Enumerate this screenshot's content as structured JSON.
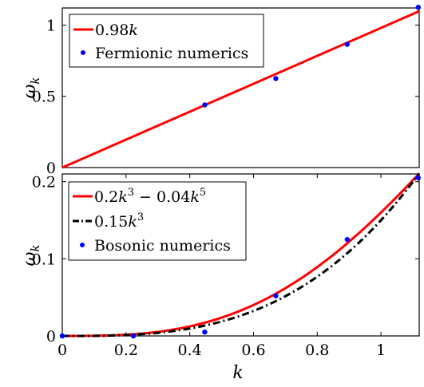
{
  "chart_data": [
    {
      "type": "line",
      "panel": "top",
      "xlabel": "",
      "ylabel": "ω_k",
      "xlim": [
        0,
        1.12
      ],
      "ylim": [
        0,
        1.12
      ],
      "yticks": [
        0,
        0.5,
        1
      ],
      "yticklabels": [
        "0",
        "0.5",
        "1"
      ],
      "legend_placement": "top-left",
      "grid": false,
      "series": [
        {
          "name": "0.98k",
          "kind": "line",
          "color": "#ff0000",
          "x": [
            0,
            1.12
          ],
          "y": [
            0,
            1.0976
          ]
        },
        {
          "name": "Fermionic numerics",
          "kind": "scatter",
          "color": "#0000ff",
          "x": [
            0.447,
            0.67,
            0.894,
            1.117
          ],
          "y": [
            0.44,
            0.625,
            0.865,
            1.125
          ]
        }
      ]
    },
    {
      "type": "line",
      "panel": "bottom",
      "xlabel": "k",
      "ylabel": "ω_k",
      "xlim": [
        0,
        1.12
      ],
      "ylim": [
        0,
        0.21
      ],
      "xticks": [
        0,
        0.2,
        0.4,
        0.6,
        0.8,
        1
      ],
      "xticklabels": [
        "0",
        "0.2",
        "0.4",
        "0.6",
        "0.8",
        "1"
      ],
      "yticks": [
        0,
        0.1,
        0.2
      ],
      "yticklabels": [
        "0",
        "0.1",
        "0.2"
      ],
      "legend_placement": "top-left",
      "grid": false,
      "series": [
        {
          "name": "0.2k^3 − 0.04k^5",
          "kind": "curve",
          "style": "solid",
          "color": "#ff0000",
          "formula": {
            "c3": 0.2,
            "c5": -0.04
          }
        },
        {
          "name": "0.15k^3",
          "kind": "curve",
          "style": "dashdot",
          "color": "#000000",
          "formula": {
            "c3": 0.15,
            "c5": 0
          }
        },
        {
          "name": "Bosonic numerics",
          "kind": "scatter",
          "color": "#0000ff",
          "x": [
            0,
            0.223,
            0.447,
            0.67,
            0.894,
            1.117
          ],
          "y": [
            0,
            0,
            0.005,
            0.052,
            0.125,
            0.205
          ]
        }
      ]
    }
  ]
}
